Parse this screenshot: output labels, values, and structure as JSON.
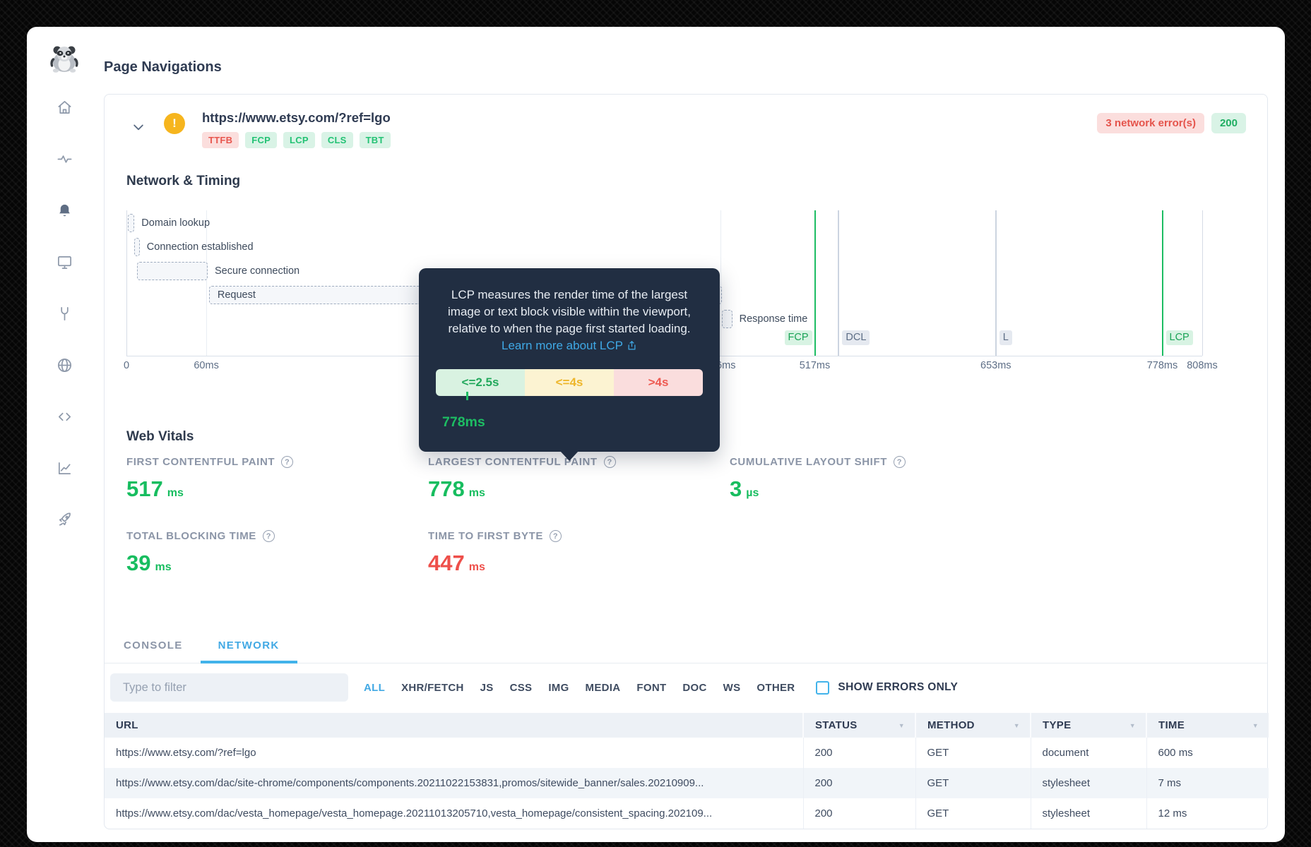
{
  "page": {
    "title": "Page Navigations"
  },
  "sidebar": {
    "logo_icon": "mascot-logo",
    "items": [
      {
        "icon": "home-icon",
        "active": false
      },
      {
        "icon": "activity-icon",
        "active": false
      },
      {
        "icon": "bell-icon",
        "active": true
      },
      {
        "icon": "monitor-icon",
        "active": false
      },
      {
        "icon": "tools-icon",
        "active": false
      },
      {
        "icon": "globe-icon",
        "active": false
      },
      {
        "icon": "code-icon",
        "active": false
      },
      {
        "icon": "line-chart-icon",
        "active": false
      },
      {
        "icon": "rocket-icon",
        "active": false
      }
    ]
  },
  "nav_card": {
    "url": "https://www.etsy.com/?ref=lgo",
    "warning_icon": "exclamation-circle",
    "vital_badges": [
      {
        "label": "TTFB",
        "status": "bad"
      },
      {
        "label": "FCP",
        "status": "good"
      },
      {
        "label": "LCP",
        "status": "good"
      },
      {
        "label": "CLS",
        "status": "good"
      },
      {
        "label": "TBT",
        "status": "good"
      }
    ],
    "network_errors_badge": "3 network error(s)",
    "status_badge": "200"
  },
  "network_timing": {
    "title": "Network & Timing",
    "chart_data": {
      "type": "waterfall",
      "x_unit": "ms",
      "x_max": 808,
      "ticks": [
        {
          "value": 0,
          "label": "0"
        },
        {
          "value": 60,
          "label": "60ms"
        },
        {
          "value": 446,
          "label": "446ms"
        },
        {
          "value": 517,
          "label": "517ms"
        },
        {
          "value": 653,
          "label": "653ms"
        },
        {
          "value": 778,
          "label": "778ms"
        },
        {
          "value": 808,
          "label": "808ms"
        }
      ],
      "phases": [
        {
          "label": "Domain lookup",
          "start": 1,
          "end": 6,
          "label_inside": false
        },
        {
          "label": "Connection established",
          "start": 6,
          "end": 10,
          "label_inside": false
        },
        {
          "label": "Secure connection",
          "start": 8,
          "end": 61,
          "label_inside": false
        },
        {
          "label": "Request",
          "start": 62,
          "end": 447,
          "label_inside": true
        },
        {
          "label": "Response time",
          "start": 447,
          "end": 455,
          "label_inside": false
        }
      ],
      "events": [
        {
          "label": "FCP",
          "time": 517,
          "color": "green",
          "align": "left"
        },
        {
          "label": "DCL",
          "time": 535,
          "color": "gray",
          "align": "right"
        },
        {
          "label": "L",
          "time": 653,
          "color": "gray",
          "align": "right"
        },
        {
          "label": "LCP",
          "time": 778,
          "color": "green",
          "align": "right"
        }
      ]
    }
  },
  "tooltip": {
    "text": "LCP measures the render time of the largest image or text block visible within the viewport, relative to when the page first started loading.",
    "link_text": "Learn more about LCP",
    "link_icon": "share-icon",
    "thresholds": [
      {
        "label": "<=2.5s",
        "status": "good"
      },
      {
        "label": "<=4s",
        "status": "warn"
      },
      {
        "label": ">4s",
        "status": "bad"
      }
    ],
    "marker_value": "778ms"
  },
  "web_vitals": {
    "title": "Web Vitals",
    "metrics": [
      {
        "label": "FIRST CONTENTFUL PAINT",
        "value": "517",
        "unit": "ms",
        "status": "good"
      },
      {
        "label": "LARGEST CONTENTFUL PAINT",
        "value": "778",
        "unit": "ms",
        "status": "good"
      },
      {
        "label": "CUMULATIVE LAYOUT SHIFT",
        "value": "3",
        "unit": "µs",
        "status": "good"
      },
      {
        "label": "TOTAL BLOCKING TIME",
        "value": "39",
        "unit": "ms",
        "status": "good"
      },
      {
        "label": "TIME TO FIRST BYTE",
        "value": "447",
        "unit": "ms",
        "status": "bad"
      }
    ]
  },
  "tabs": [
    {
      "label": "CONSOLE",
      "active": false
    },
    {
      "label": "NETWORK",
      "active": true
    }
  ],
  "filter_bar": {
    "input_placeholder": "Type to filter",
    "type_filters": [
      "ALL",
      "XHR/FETCH",
      "JS",
      "CSS",
      "IMG",
      "MEDIA",
      "FONT",
      "DOC",
      "WS",
      "OTHER"
    ],
    "active_filter": "ALL",
    "show_errors_label": "SHOW ERRORS ONLY"
  },
  "request_table": {
    "columns": [
      "URL",
      "STATUS",
      "METHOD",
      "TYPE",
      "TIME"
    ],
    "rows": [
      {
        "url": "https://www.etsy.com/?ref=lgo",
        "status": "200",
        "method": "GET",
        "type": "document",
        "time": "600 ms"
      },
      {
        "url": "https://www.etsy.com/dac/site-chrome/components/components.20211022153831,promos/sitewide_banner/sales.20210909...",
        "status": "200",
        "method": "GET",
        "type": "stylesheet",
        "time": "7 ms"
      },
      {
        "url": "https://www.etsy.com/dac/vesta_homepage/vesta_homepage.20211013205710,vesta_homepage/consistent_spacing.202109...",
        "status": "200",
        "method": "GET",
        "type": "stylesheet",
        "time": "12 ms"
      }
    ]
  }
}
